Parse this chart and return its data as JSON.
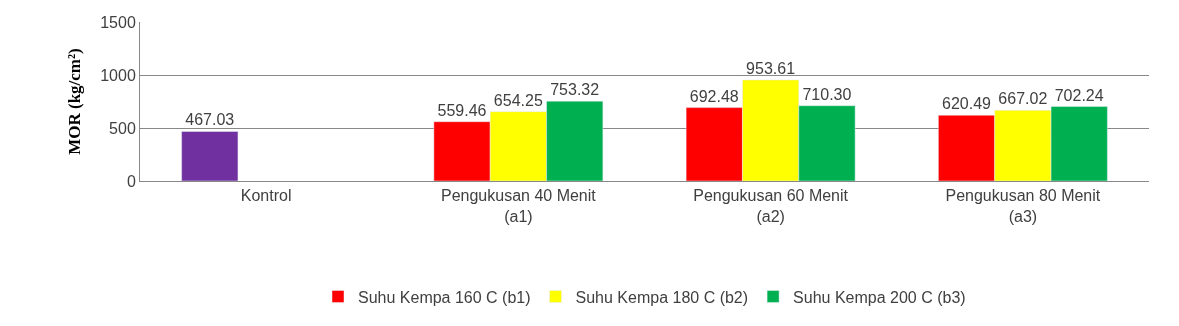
{
  "chart_data": {
    "type": "bar",
    "ylabel": "MOR (kg/cm²)",
    "categories": [
      "Kontrol",
      "Pengukusan 40 Menit (a1)",
      "Pengukusan 60 Menit (a2)",
      "Pengukusan 80 Menit (a3)"
    ],
    "series": [
      {
        "name": "Suhu Kempa 160 C (b1)",
        "color": "#ff0000",
        "colors": [
          "#7030a0",
          "#ff0000",
          "#ff0000",
          "#ff0000"
        ],
        "values": [
          467.03,
          559.46,
          692.48,
          620.49
        ],
        "value_labels": [
          "467.03",
          "559.46",
          "692.48",
          "620.49"
        ]
      },
      {
        "name": "Suhu Kempa 180 C (b2)",
        "color": "#ffff00",
        "values": [
          null,
          654.25,
          953.61,
          667.02
        ],
        "value_labels": [
          null,
          "654.25",
          "953.61",
          "667.02"
        ]
      },
      {
        "name": "Suhu Kempa 200 C (b3)",
        "color": "#00b050",
        "values": [
          null,
          753.32,
          710.3,
          702.24
        ],
        "value_labels": [
          null,
          "753.32",
          "710.30",
          "702.24"
        ]
      }
    ],
    "ylim": [
      0,
      1500
    ],
    "yticks": [
      0,
      500,
      1000,
      1500
    ],
    "grid": "y",
    "legend": "bottom"
  }
}
